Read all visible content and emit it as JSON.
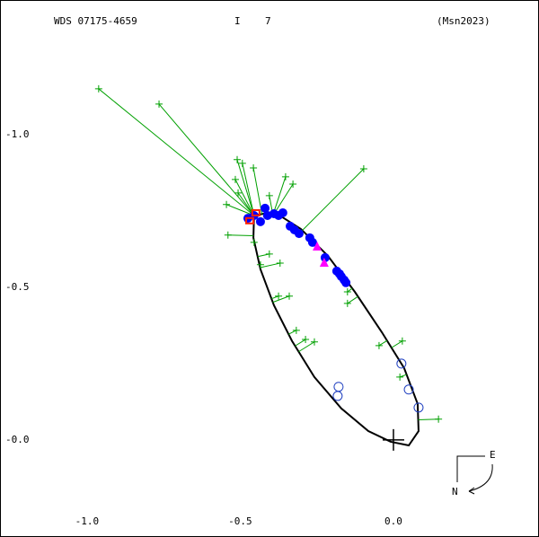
{
  "header": {
    "name": "WDS 07175-4659",
    "code1": "I",
    "code2": "7",
    "ref": "(Msn2023)"
  },
  "compass": {
    "east": "E",
    "north": "N"
  },
  "chart_data": {
    "type": "orbit",
    "xlim": [
      -1.284,
      0.475
    ],
    "ylim": [
      -1.441,
      0.318
    ],
    "xticks": [
      {
        "value": -1.0,
        "label": "-1.0"
      },
      {
        "value": -0.5,
        "label": "-0.5"
      },
      {
        "value": 0,
        "label": "0.0"
      }
    ],
    "yticks": [
      {
        "value": -1.0,
        "label": "-1.0"
      },
      {
        "value": -0.5,
        "label": "-0.5"
      },
      {
        "value": 0,
        "label": "-0.0"
      }
    ],
    "series": [
      {
        "kind": "line",
        "color": "#000000",
        "x": [
          -0.455,
          -0.457,
          -0.434,
          -0.39,
          -0.331,
          -0.258,
          -0.17,
          -0.082,
          -0.009,
          0.05,
          0.082,
          0.079,
          0.035,
          -0.038,
          -0.126,
          -0.214,
          -0.302,
          -0.39,
          -0.455
        ],
        "values": [
          -0.735,
          -0.662,
          -0.559,
          -0.441,
          -0.324,
          -0.206,
          -0.103,
          -0.029,
          0.006,
          0.018,
          -0.029,
          -0.118,
          -0.235,
          -0.353,
          -0.485,
          -0.603,
          -0.691,
          -0.747,
          -0.735
        ]
      },
      {
        "kind": "plus",
        "color": "#00a000",
        "x": [
          -0.962,
          -0.765,
          -0.51,
          -0.493,
          -0.457,
          -0.516,
          -0.507,
          -0.545,
          -0.405,
          -0.352,
          -0.328,
          -0.097,
          -0.54,
          -0.455,
          -0.434,
          -0.37,
          -0.405,
          -0.15,
          -0.15,
          -0.375,
          -0.34,
          -0.317,
          -0.287,
          -0.258,
          -0.047,
          0.029,
          0.021,
          0.147
        ],
        "values": [
          -1.15,
          -1.1,
          -0.918,
          -0.906,
          -0.891,
          -0.853,
          -0.809,
          -0.771,
          -0.8,
          -0.862,
          -0.838,
          -0.888,
          -0.671,
          -0.647,
          -0.574,
          -0.579,
          -0.609,
          -0.485,
          -0.447,
          -0.471,
          -0.471,
          -0.359,
          -0.329,
          -0.321,
          -0.309,
          -0.324,
          -0.206,
          -0.068
        ]
      },
      {
        "kind": "dot",
        "color": "#0000ff",
        "x": [
          -0.475,
          -0.455,
          -0.434,
          -0.419,
          -0.411,
          -0.39,
          -0.375,
          -0.361,
          -0.337,
          -0.323,
          -0.308,
          -0.273,
          -0.264,
          -0.223,
          -0.185,
          -0.176,
          -0.17,
          -0.161,
          -0.155
        ],
        "values": [
          -0.726,
          -0.735,
          -0.715,
          -0.759,
          -0.735,
          -0.741,
          -0.735,
          -0.744,
          -0.7,
          -0.688,
          -0.676,
          -0.662,
          -0.647,
          -0.597,
          -0.553,
          -0.544,
          -0.535,
          -0.524,
          -0.515
        ]
      },
      {
        "kind": "ring",
        "color": "#2040c0",
        "x": [
          0.026,
          0.05,
          0.082,
          -0.179,
          -0.182
        ],
        "values": [
          -0.25,
          -0.165,
          -0.106,
          -0.174,
          -0.144
        ]
      },
      {
        "kind": "triangle",
        "color": "#ff00ff",
        "x": [
          -0.249,
          -0.226
        ],
        "values": [
          -0.632,
          -0.579
        ]
      },
      {
        "kind": "square",
        "color": "#ff2000",
        "x": [
          -0.449,
          -0.469
        ],
        "values": [
          -0.744,
          -0.718
        ]
      }
    ]
  }
}
